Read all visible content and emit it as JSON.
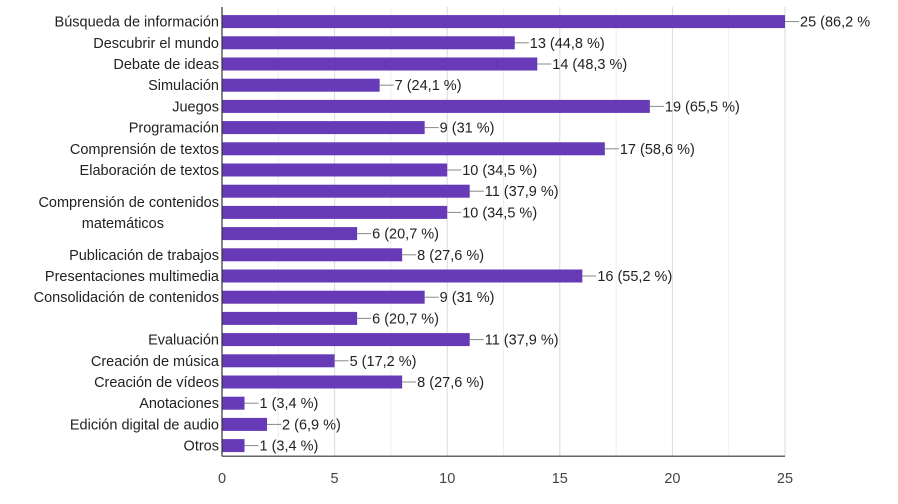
{
  "chart_data": {
    "type": "bar",
    "orientation": "horizontal",
    "xlim": [
      0,
      25
    ],
    "x_ticks": [
      0,
      5,
      10,
      15,
      20,
      25
    ],
    "grid": true,
    "bar_color": "#673ab7",
    "categories": [
      "Búsqueda de información",
      "Descubrir el mundo",
      "Debate de ideas",
      "Simulación",
      "Juegos",
      "Programación",
      "Comprensión de textos",
      "Elaboración de textos",
      "",
      "",
      "",
      "Publicación de trabajos",
      "Presentaciones multimedia",
      "Consolidación de contenidos",
      "",
      "Evaluación",
      "Creación de música",
      "Creación de vídeos",
      "Anotaciones",
      "Edición digital de audio",
      "Otros"
    ],
    "values": [
      25,
      13,
      14,
      7,
      19,
      9,
      17,
      10,
      11,
      10,
      6,
      8,
      16,
      9,
      6,
      11,
      5,
      8,
      1,
      2,
      1
    ],
    "value_labels": [
      "25 (86,2 %",
      "13 (44,8 %)",
      "14 (48,3 %)",
      "7 (24,1 %)",
      "19 (65,5 %)",
      "9 (31 %)",
      "17 (58,6 %)",
      "10 (34,5 %)",
      "11 (37,9 %)",
      "10 (34,5 %)",
      "6 (20,7 %)",
      "8 (27,6 %)",
      "16 (55,2 %)",
      "9 (31 %)",
      "6 (20,7 %)",
      "11 (37,9 %)",
      "5 (17,2 %)",
      "8 (27,6 %)",
      "1 (3,4 %)",
      "2 (6,9 %)",
      "1 (3,4 %)"
    ],
    "group_labels": [
      {
        "text_lines": [
          "Comprensión de contenidos",
          "matemáticos"
        ],
        "rows": [
          8,
          9,
          10
        ]
      }
    ]
  }
}
